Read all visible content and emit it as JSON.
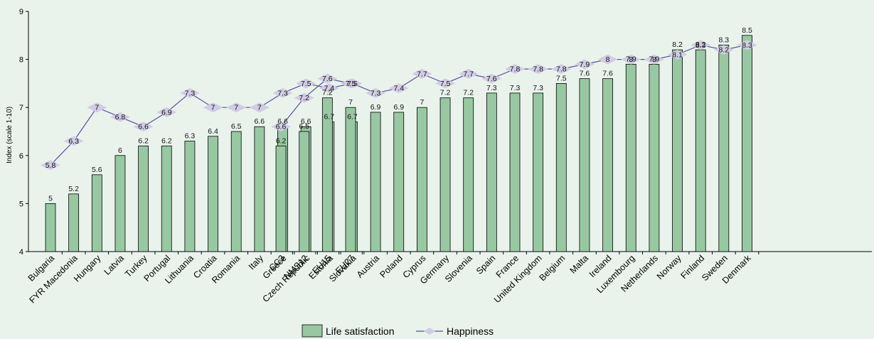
{
  "chart_data": {
    "type": "bar",
    "ylabel": "Index (scale 1-10)",
    "xlabel": "",
    "ylim": [
      4,
      9
    ],
    "yticks": [
      4,
      5,
      6,
      7,
      8,
      9
    ],
    "grid": false,
    "legend_position": "bottom-center",
    "groups": [
      {
        "categories": [
          "Bulgaria",
          "FYR Macedonia",
          "Hungary",
          "Latvia",
          "Turkey",
          "Portugal",
          "Lithuania",
          "Croatia",
          "Romania",
          "Italy",
          "Greece",
          "Czech Republic",
          "Estonia",
          "Slovakia",
          "Austria",
          "Poland",
          "Cyprus",
          "Germany",
          "Slovenia",
          "Spain",
          "France",
          "United Kingdom",
          "Belgium",
          "Malta",
          "Ireland",
          "Luxembourg",
          "Netherlands",
          "Norway",
          "Finland",
          "Sweden",
          "Denmark"
        ],
        "life_satisfaction": [
          5,
          5.2,
          5.6,
          6,
          6.2,
          6.2,
          6.3,
          6.4,
          6.5,
          6.6,
          6.6,
          6.6,
          6.7,
          6.7,
          6.9,
          6.9,
          7,
          7.2,
          7.2,
          7.3,
          7.3,
          7.3,
          7.5,
          7.6,
          7.6,
          7.9,
          7.9,
          8.2,
          8.2,
          8.3,
          8.5
        ],
        "happiness": [
          5.8,
          6.3,
          7,
          6.8,
          6.6,
          6.9,
          7.3,
          7,
          7,
          7,
          7.3,
          7.5,
          7.4,
          7.5,
          7.3,
          7.4,
          7.7,
          7.5,
          7.7,
          7.6,
          7.8,
          7.8,
          7.8,
          7.9,
          8,
          8,
          8,
          8.1,
          8.3,
          8.2,
          8.3
        ]
      },
      {
        "categories": [
          "CC3",
          "NMS12",
          "EU15",
          "EU27"
        ],
        "life_satisfaction": [
          6.2,
          6.5,
          7.2,
          7
        ],
        "happiness": [
          6.6,
          7.2,
          7.6,
          7.5
        ]
      }
    ],
    "series": [
      {
        "name": "Life satisfaction",
        "type": "bar",
        "color": "#98c8a2",
        "stroke": "#000000"
      },
      {
        "name": "Happiness",
        "type": "line",
        "color": "#5a4f9a",
        "marker_color": "#d0cde3"
      }
    ]
  }
}
